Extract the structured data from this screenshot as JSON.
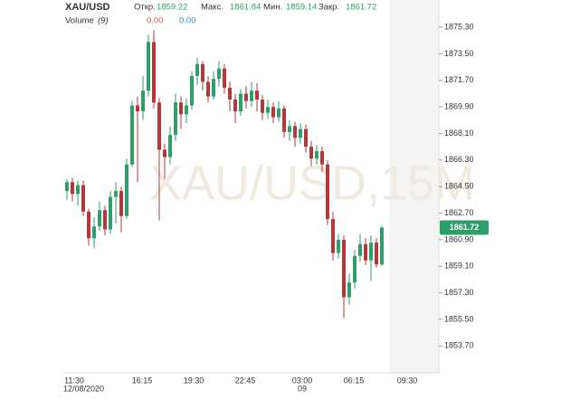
{
  "chart_data": {
    "type": "candlestick",
    "symbol": "XAU/USD",
    "watermark": "XAU/USD,15M",
    "ohlc_labels": [
      "Откр.",
      "Макс.",
      "Мин.",
      "Закр."
    ],
    "ohlc_values": [
      1859.22,
      1861.84,
      1859.14,
      1861.72
    ],
    "volume_label": "Volume",
    "volume_period": "(9)",
    "volume_values": [
      "0.00",
      "0.00"
    ],
    "last_price": 1861.72,
    "up_color": "#2e9e6b",
    "down_color": "#b03a3a",
    "ylim": [
      1852.0,
      1876.9
    ],
    "yticks": [
      {
        "value": 1853.7,
        "label": "1853.70"
      },
      {
        "value": 1855.5,
        "label": "1855.50"
      },
      {
        "value": 1857.3,
        "label": "1857.30"
      },
      {
        "value": 1859.1,
        "label": "1859.10"
      },
      {
        "value": 1860.9,
        "label": "1860.90"
      },
      {
        "value": 1862.7,
        "label": "1862.70"
      },
      {
        "value": 1864.5,
        "label": "1864.50"
      },
      {
        "value": 1866.3,
        "label": "1866.30"
      },
      {
        "value": 1868.1,
        "label": "1868.10"
      },
      {
        "value": 1869.9,
        "label": "1869.90"
      },
      {
        "value": 1871.7,
        "label": "1871.70"
      },
      {
        "value": 1873.5,
        "label": "1873.50"
      },
      {
        "value": 1875.3,
        "label": "1875.30"
      }
    ],
    "x_labels": [
      "11:30",
      "16:15",
      "19:30",
      "22:45",
      "03:00",
      "06:15",
      "09:30"
    ],
    "x_date_labels": [
      "12/08/2020",
      "09"
    ],
    "open": [
      1864.2,
      1864.8,
      1864.0,
      1864.6,
      1862.8,
      1861.0,
      1861.8,
      1862.9,
      1861.6,
      1863.8,
      1864.2,
      1862.5,
      1866.0,
      1870.0,
      1869.6,
      1871.0,
      1874.3,
      1870.2,
      1867.0,
      1866.5,
      1868.0,
      1870.2,
      1869.4,
      1870.0,
      1872.0,
      1872.8,
      1871.6,
      1870.6,
      1871.8,
      1872.5,
      1871.2,
      1870.4,
      1869.6,
      1870.8,
      1870.3,
      1871.0,
      1870.4,
      1869.5,
      1869.9,
      1869.2,
      1869.8,
      1868.2,
      1868.6,
      1867.8,
      1868.4,
      1867.2,
      1866.4,
      1866.9,
      1866.0,
      1862.3,
      1860.0,
      1860.9,
      1857.0,
      1858.0,
      1859.8,
      1860.6,
      1859.5,
      1860.7,
      1859.22
    ],
    "high": [
      1865.0,
      1865.1,
      1864.9,
      1864.9,
      1863.0,
      1862.4,
      1863.5,
      1863.2,
      1864.2,
      1864.8,
      1864.5,
      1866.4,
      1870.3,
      1870.6,
      1872.0,
      1874.8,
      1875.1,
      1870.5,
      1867.4,
      1868.6,
      1870.8,
      1870.6,
      1870.5,
      1872.3,
      1873.2,
      1873.0,
      1872.0,
      1872.3,
      1873.0,
      1872.8,
      1871.6,
      1870.8,
      1871.1,
      1871.3,
      1871.6,
      1871.5,
      1870.7,
      1870.4,
      1870.2,
      1870.3,
      1870.0,
      1869.0,
      1868.9,
      1868.8,
      1868.7,
      1867.6,
      1867.3,
      1867.2,
      1866.3,
      1862.8,
      1861.3,
      1861.2,
      1858.6,
      1860.2,
      1861.3,
      1861.0,
      1861.2,
      1861.0,
      1861.84
    ],
    "low": [
      1863.6,
      1863.5,
      1863.2,
      1862.5,
      1860.5,
      1860.3,
      1861.5,
      1861.2,
      1861.3,
      1862.0,
      1861.4,
      1862.3,
      1865.8,
      1864.8,
      1869.0,
      1870.6,
      1869.8,
      1862.2,
      1865.0,
      1866.0,
      1867.6,
      1868.4,
      1868.8,
      1869.7,
      1871.4,
      1871.0,
      1870.2,
      1870.4,
      1871.3,
      1870.8,
      1869.6,
      1868.8,
      1869.3,
      1869.8,
      1869.9,
      1869.6,
      1869.0,
      1869.1,
      1868.8,
      1868.9,
      1867.8,
      1867.6,
      1867.2,
      1867.4,
      1866.8,
      1865.9,
      1866.0,
      1865.5,
      1861.9,
      1859.5,
      1859.6,
      1855.6,
      1856.5,
      1857.6,
      1859.4,
      1859.2,
      1858.1,
      1859.0,
      1859.14
    ],
    "close": [
      1864.8,
      1864.0,
      1864.6,
      1862.8,
      1861.0,
      1861.8,
      1862.9,
      1861.6,
      1863.8,
      1864.2,
      1862.5,
      1866.0,
      1870.0,
      1869.6,
      1871.0,
      1874.3,
      1870.2,
      1867.0,
      1866.5,
      1868.0,
      1870.2,
      1869.4,
      1870.0,
      1872.0,
      1872.8,
      1871.6,
      1870.6,
      1871.8,
      1872.5,
      1871.2,
      1870.4,
      1869.6,
      1870.8,
      1870.3,
      1871.0,
      1870.4,
      1869.5,
      1869.9,
      1869.2,
      1869.8,
      1868.2,
      1868.6,
      1867.8,
      1868.4,
      1867.2,
      1866.4,
      1866.9,
      1866.0,
      1862.3,
      1860.0,
      1860.9,
      1857.0,
      1858.0,
      1859.8,
      1860.6,
      1859.5,
      1860.7,
      1859.22,
      1861.72
    ]
  }
}
